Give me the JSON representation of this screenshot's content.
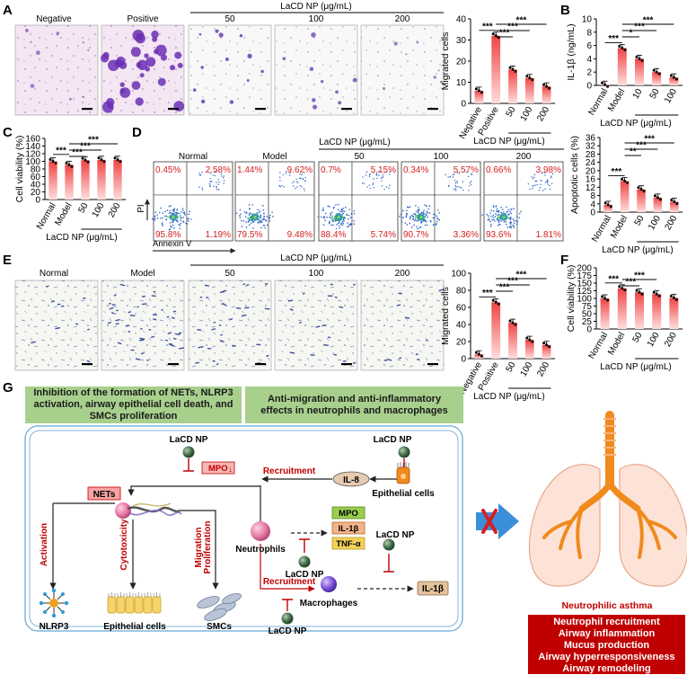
{
  "panel_letters": [
    "A",
    "B",
    "C",
    "D",
    "E",
    "F",
    "G"
  ],
  "colors": {
    "bar_top": "#ee4444",
    "bar_bottom": "#ffd9d9",
    "red": "#d42020",
    "green": "#a8d08d",
    "dark_red": "#c00000",
    "blue_arrow": "#3b8fd8",
    "orange": "#f08a1c"
  },
  "panel_a": {
    "micro_labels": [
      "Negative",
      "Positive",
      "50",
      "100",
      "200"
    ],
    "group_label": "LaCD NP (μg/mL)"
  },
  "panel_d": {
    "group_label": "LaCD NP (μg/mL)",
    "plot_titles": [
      "Normal",
      "Model",
      "50",
      "100",
      "200"
    ],
    "y_axis": "PI",
    "x_axis": "Annexin V",
    "quadrants": [
      {
        "ul": "0.45%",
        "ur": "2.58%",
        "ll": "95.8%",
        "lr": "1.19%"
      },
      {
        "ul": "1.44%",
        "ur": "9.62%",
        "ll": "79.5%",
        "lr": "9.48%"
      },
      {
        "ul": "0.7%",
        "ur": "5.15%",
        "ll": "88.4%",
        "lr": "5.74%"
      },
      {
        "ul": "0.34%",
        "ur": "5.57%",
        "ll": "90.7%",
        "lr": "3.36%"
      },
      {
        "ul": "0.66%",
        "ur": "3.98%",
        "ll": "93.6%",
        "lr": "1.81%"
      }
    ]
  },
  "panel_e": {
    "micro_labels": [
      "Normal",
      "Model",
      "50",
      "100",
      "200"
    ],
    "group_label": "LaCD NP (μg/mL)"
  },
  "chart_data": [
    {
      "panel": "A",
      "type": "bar",
      "categories": [
        "Negative",
        "Positive",
        "50",
        "100",
        "200"
      ],
      "values": [
        6,
        32,
        16,
        12,
        8
      ],
      "ylabel": "Migrated cells",
      "ylim": [
        0,
        40
      ],
      "yticks": [
        0,
        10,
        20,
        30,
        40
      ],
      "group_label": "LaCD NP (μg/mL)",
      "sig": [
        "***",
        "***",
        "***",
        "***"
      ]
    },
    {
      "panel": "B",
      "type": "bar",
      "categories": [
        "Normal",
        "Model",
        "10",
        "50",
        "100"
      ],
      "values": [
        0.1,
        5.6,
        4.0,
        2.0,
        1.2
      ],
      "ylabel": "IL-1β (ng/mL)",
      "ylim": [
        0,
        10
      ],
      "yticks": [
        0,
        2,
        4,
        6,
        8,
        10
      ],
      "group_label": "LaCD NP (μg/mL)",
      "sig": [
        "***",
        "*",
        "***",
        "***"
      ]
    },
    {
      "panel": "C",
      "type": "bar",
      "categories": [
        "Normal",
        "Model",
        "50",
        "100",
        "200"
      ],
      "values": [
        100,
        91,
        103,
        104,
        104
      ],
      "ylabel": "Cell viability (%)",
      "ylim": [
        0,
        160
      ],
      "yticks": [
        0,
        20,
        40,
        60,
        80,
        100,
        120,
        140,
        160
      ],
      "group_label": "LaCD NP (μg/mL)",
      "sig": [
        "***",
        "***",
        "***",
        "***"
      ]
    },
    {
      "panel": "D",
      "type": "bar",
      "categories": [
        "Normal",
        "Model",
        "50",
        "100",
        "200"
      ],
      "values": [
        3.5,
        15,
        11,
        7,
        5
      ],
      "ylabel": "Apoptotic cells (%)",
      "ylim": [
        0,
        36
      ],
      "yticks": [
        0,
        4,
        8,
        12,
        16,
        20,
        24,
        28,
        32,
        36
      ],
      "group_label": "LaCD NP (μg/mL)",
      "sig": [
        "***",
        "**",
        "***",
        "***"
      ]
    },
    {
      "panel": "E",
      "type": "bar",
      "categories": [
        "Negative",
        "Positive",
        "50",
        "100",
        "200"
      ],
      "values": [
        5,
        66,
        42,
        22,
        16
      ],
      "ylabel": "Migrated cells",
      "ylim": [
        0,
        100
      ],
      "yticks": [
        0,
        20,
        40,
        60,
        80,
        100
      ],
      "group_label": "LaCD NP (μg/mL)",
      "sig": [
        "***",
        "***",
        "***",
        "***"
      ]
    },
    {
      "panel": "F",
      "type": "bar",
      "categories": [
        "Normal",
        "Model",
        "50",
        "100",
        "200"
      ],
      "values": [
        100,
        133,
        120,
        114,
        102
      ],
      "ylabel": "Cell viability (%)",
      "ylim": [
        0,
        200
      ],
      "yticks": [
        0,
        25,
        50,
        75,
        100,
        125,
        150,
        175,
        200
      ],
      "group_label": "LaCD NP (μg/mL)",
      "sig": [
        "***",
        "***",
        "***"
      ]
    }
  ],
  "panel_g": {
    "header_left": "Inhibition of the formation of NETs, NLRP3 activation, airway epithelial cell death, and SMCs proliferation",
    "header_right": "Anti-migration and anti-inflammatory effects in neutrophils and macrophages",
    "lacd_np": "LaCD NP",
    "mpo_box": "MPO",
    "mpo_down": "↓",
    "nets": "NETs",
    "recruitment": "Recruitment",
    "il8": "IL-8",
    "epithelial_cells_top": "Epithelial cells",
    "neutrophils": "Neutrophils",
    "markers": [
      "MPO",
      "IL-1β",
      "TNF-α"
    ],
    "activation": "Activation",
    "cytotoxicity": "Cytotoxicity",
    "migration": "Migration",
    "proliferation": "Proliferation",
    "nlrp3": "NLRP3",
    "epithelial_cells_bottom": "Epithelial cells",
    "smcs": "SMCs",
    "macrophages": "Macrophages",
    "il1b": "IL-1β",
    "disease": "Neutrophilic asthma",
    "symptoms": [
      "Neutrophil recruitment",
      "Airway inflammation",
      "Mucus production",
      "Airway hyperresponsiveness",
      "Airway remodeling"
    ]
  }
}
